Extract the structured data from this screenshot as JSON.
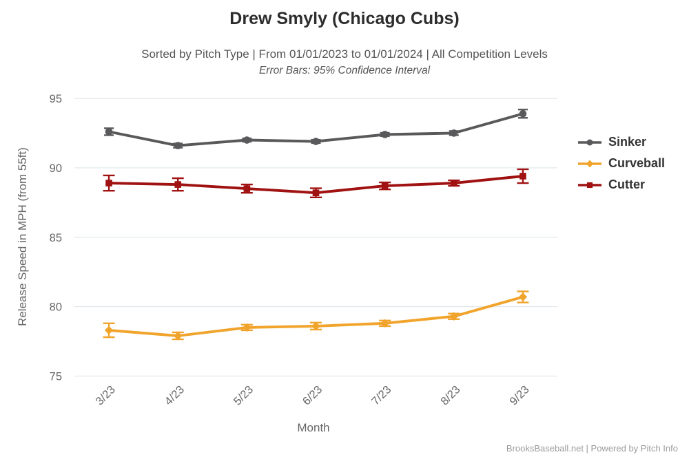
{
  "header": {
    "title": "Drew Smyly (Chicago Cubs)",
    "subtitle": "Sorted by Pitch Type | From 01/01/2023 to 01/01/2024 | All Competition Levels",
    "note": "Error Bars: 95% Confidence Interval"
  },
  "footer": {
    "credits": "BrooksBaseball.net | Powered by Pitch Info"
  },
  "colors": {
    "sinker": "#59595B",
    "curveball": "#F1A42C",
    "cutter": "#A01212",
    "gridline": "#E2E8EC",
    "axis_text": "#666666",
    "title_text": "#2D2D2D",
    "subtitle_text": "#555555",
    "legend_text": "#333333",
    "credits_text": "#9B9B9B"
  },
  "chart_data": {
    "type": "line",
    "title": "Drew Smyly (Chicago Cubs)",
    "subtitle": "Sorted by Pitch Type | From 01/01/2023 to 01/01/2024 | All Competition Levels",
    "annotation": "Error Bars: 95% Confidence Interval",
    "xlabel": "Month",
    "ylabel": "Release Speed in MPH (from 55ft)",
    "categories": [
      "3/23",
      "4/23",
      "5/23",
      "6/23",
      "7/23",
      "8/23",
      "9/23"
    ],
    "yticks": [
      95,
      90,
      85,
      80,
      75
    ],
    "ylim": [
      75,
      95
    ],
    "grid": true,
    "legend_position": "right",
    "error_bars": "95% confidence interval",
    "series": [
      {
        "name": "Sinker",
        "marker": "circle",
        "color": "#59595B",
        "values": [
          92.6,
          91.6,
          92.0,
          91.9,
          92.4,
          92.5,
          93.9
        ],
        "ci": [
          0.25,
          0.15,
          0.12,
          0.12,
          0.12,
          0.15,
          0.3
        ]
      },
      {
        "name": "Curveball",
        "marker": "diamond",
        "color": "#F1A42C",
        "values": [
          78.3,
          77.9,
          78.5,
          78.6,
          78.8,
          79.3,
          80.7
        ],
        "ci": [
          0.5,
          0.25,
          0.2,
          0.25,
          0.2,
          0.2,
          0.4
        ]
      },
      {
        "name": "Cutter",
        "marker": "square",
        "color": "#A01212",
        "values": [
          88.9,
          88.8,
          88.5,
          88.2,
          88.7,
          88.9,
          89.4
        ],
        "ci": [
          0.55,
          0.45,
          0.3,
          0.33,
          0.25,
          0.2,
          0.5
        ]
      }
    ]
  }
}
